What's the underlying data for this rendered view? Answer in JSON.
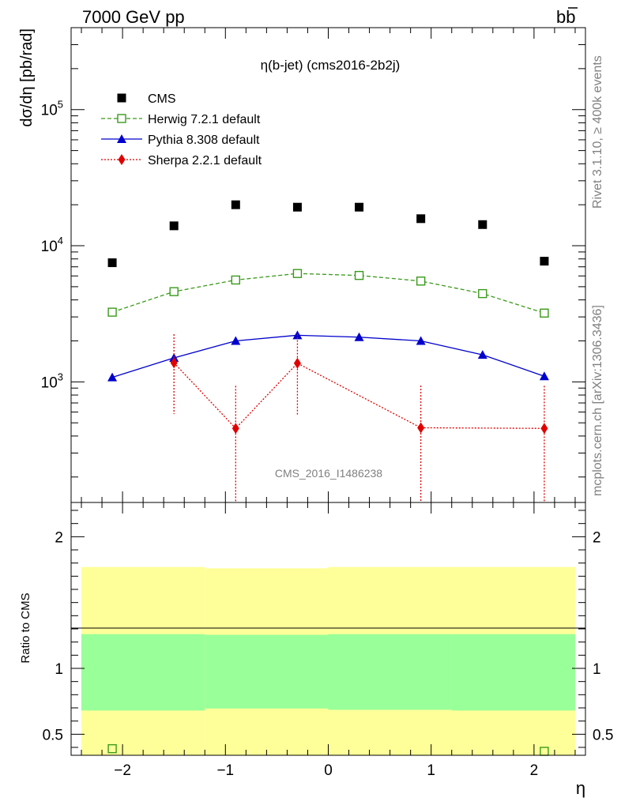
{
  "header": {
    "energy_label": "7000 GeV pp",
    "process_label": "b",
    "process_label_bar": "b"
  },
  "side_text": {
    "rivet": "Rivet 3.1.10, ≥ 400k events",
    "mcplots": "mcplots.cern.ch [arXiv:1306.3436]"
  },
  "chart_data": [
    {
      "type": "scatter",
      "title": "η(b-jet) (cms2016-2b2j)",
      "xlabel": "η",
      "ylabel": "dσ/dη [pb/rad]",
      "yscale": "log",
      "xlim": [
        -2.5,
        2.5
      ],
      "ylim": [
        130,
        400000
      ],
      "x_ticks": [
        "−2",
        "−1",
        "0",
        "1",
        "2"
      ],
      "x_tick_values": [
        -2,
        -1,
        0,
        1,
        2
      ],
      "y_ticks": [
        "10",
        "10",
        "10"
      ],
      "y_tick_exponents": [
        "3",
        "4",
        "5"
      ],
      "y_tick_values": [
        1000,
        10000,
        100000
      ],
      "watermark": "CMS_2016_I1486238",
      "legend_position": "top-left",
      "series": [
        {
          "name": "CMS",
          "style": "data",
          "color": "#000000",
          "x": [
            -2.1,
            -1.5,
            -0.9,
            -0.3,
            0.3,
            0.9,
            1.5,
            2.1
          ],
          "y": [
            7500,
            14000,
            20000,
            19200,
            19200,
            15800,
            14300,
            7700
          ]
        },
        {
          "name": "Herwig 7.2.1 default",
          "style": "open-square-dashed",
          "color": "#3a9a1a",
          "x": [
            -2.1,
            -1.5,
            -0.9,
            -0.3,
            0.3,
            0.9,
            1.5,
            2.1
          ],
          "y": [
            3250,
            4600,
            5600,
            6250,
            6050,
            5500,
            4450,
            3200
          ]
        },
        {
          "name": "Pythia 8.308 default",
          "style": "triangle-solid",
          "color": "#0000cc",
          "x": [
            -2.1,
            -1.5,
            -0.9,
            -0.3,
            0.3,
            0.9,
            1.5,
            2.1
          ],
          "y": [
            1080,
            1500,
            2000,
            2200,
            2130,
            2000,
            1580,
            1100
          ]
        },
        {
          "name": "Sherpa 2.2.1 default",
          "style": "diamond-dotted",
          "color": "#e00000",
          "x": [
            -1.5,
            -0.9,
            -0.3,
            0.9,
            2.1
          ],
          "y": [
            1380,
            455,
            1370,
            460,
            455
          ],
          "y_err_low": [
            800,
            455,
            800,
            460,
            455
          ],
          "y_err_high": [
            860,
            480,
            880,
            480,
            480
          ]
        }
      ]
    },
    {
      "type": "area",
      "ylabel": "Ratio to CMS",
      "xlim": [
        -2.5,
        2.5
      ],
      "ylim": [
        0.34,
        2.26
      ],
      "y_ticks": [
        "0.5",
        "1",
        "2"
      ],
      "y_tick_values": [
        0.5,
        1,
        2
      ],
      "bins": [
        -2.4,
        -1.2,
        0,
        1.2,
        2.4
      ],
      "band_outer_low": [
        0.68,
        0.695,
        0.685,
        0.68
      ],
      "band_outer_high": [
        1.77,
        1.76,
        1.77,
        1.77
      ],
      "band_inner_low": [
        0.68,
        0.695,
        0.685,
        0.68
      ],
      "band_inner_high": [
        1.26,
        1.255,
        1.26,
        1.26
      ],
      "colors": {
        "outer": "#ffff99",
        "inner": "#99ff99"
      },
      "ratio_points": [
        {
          "series": "Herwig 7.2.1 default",
          "x": -2.1,
          "y": 0.39
        },
        {
          "series": "Herwig 7.2.1 default",
          "x": 2.1,
          "y": 0.37
        }
      ]
    }
  ]
}
